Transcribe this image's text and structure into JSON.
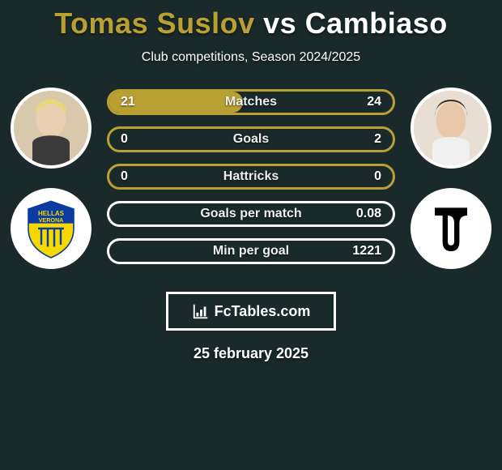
{
  "background_color": "#1a2a2a",
  "title": {
    "prefix": "Tomas Suslov",
    "vs": " vs ",
    "suffix": "Cambiaso",
    "prefix_color": "#b8a032",
    "suffix_color": "#ffffff",
    "fontsize": 36
  },
  "subtitle": "Club competitions, Season 2024/2025",
  "left_player_bg": "#d8c8ac",
  "right_player_bg": "#e8ded4",
  "left_club": {
    "name": "Hellas Verona",
    "bg": "#ffffff",
    "shield_top": "#0a3ba0",
    "shield_bottom": "#f7d900",
    "text": "HELLAS VERONA"
  },
  "right_club": {
    "name": "Juventus",
    "bg": "#ffffff",
    "stroke": "#000000"
  },
  "colors": {
    "left": "#b8a032",
    "right": "#ffffff"
  },
  "bars": [
    {
      "label": "Matches",
      "left": "21",
      "right": "24",
      "fill_pct": 47,
      "border": "left"
    },
    {
      "label": "Goals",
      "left": "0",
      "right": "2",
      "fill_pct": 0,
      "border": "left"
    },
    {
      "label": "Hattricks",
      "left": "0",
      "right": "0",
      "fill_pct": 0,
      "border": "left"
    },
    {
      "label": "Goals per match",
      "left": "",
      "right": "0.08",
      "fill_pct": 0,
      "border": "right"
    },
    {
      "label": "Min per goal",
      "left": "",
      "right": "1221",
      "fill_pct": 0,
      "border": "right"
    }
  ],
  "brand": "FcTables.com",
  "date": "25 february 2025"
}
